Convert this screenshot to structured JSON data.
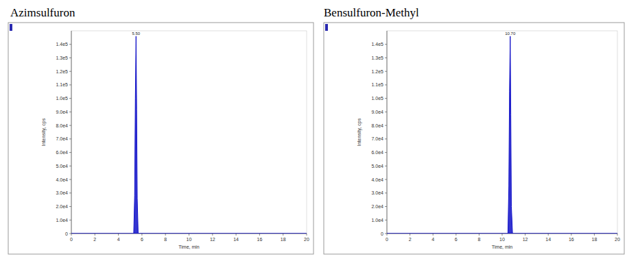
{
  "chart_data": [
    {
      "type": "area",
      "title": "Azimsulfuron",
      "x_label": "Time, min",
      "y_label": "Intensity, cps",
      "xlim": [
        0,
        20
      ],
      "xticks": [
        0,
        2,
        4,
        6,
        8,
        10,
        12,
        14,
        16,
        18,
        20
      ],
      "ylim": [
        0,
        150000
      ],
      "yticks": [
        0,
        {
          "value": 10000,
          "label": "1.0e4"
        },
        {
          "value": 20000,
          "label": "2.0e4"
        },
        {
          "value": 30000,
          "label": "3.0e4"
        },
        {
          "value": 40000,
          "label": "4.0e4"
        },
        {
          "value": 50000,
          "label": "5.0e4"
        },
        {
          "value": 60000,
          "label": "6.0e4"
        },
        {
          "value": 70000,
          "label": "7.0e4"
        },
        {
          "value": 80000,
          "label": "8.0e4"
        },
        {
          "value": 90000,
          "label": "9.0e4"
        },
        {
          "value": 100000,
          "label": "1.0e5"
        },
        {
          "value": 110000,
          "label": "1.1e5"
        },
        {
          "value": 120000,
          "label": "1.2e5"
        },
        {
          "value": 130000,
          "label": "1.3e5"
        },
        {
          "value": 140000,
          "label": "1.4e5"
        }
      ],
      "annotations": [
        {
          "x": 5.5,
          "y": 146000,
          "text": "5.50"
        }
      ],
      "series": [
        {
          "color": "#1010c8",
          "x": [
            0,
            5.3,
            5.38,
            5.44,
            5.5,
            5.55,
            5.6,
            5.68,
            20
          ],
          "values": [
            0,
            0,
            28000,
            100000,
            146000,
            92000,
            26000,
            0,
            0
          ]
        }
      ]
    },
    {
      "type": "area",
      "title": "Bensulfuron-Methyl",
      "x_label": "Time, min",
      "y_label": "Intensity, cps",
      "xlim": [
        0,
        20
      ],
      "xticks": [
        0,
        2,
        4,
        6,
        8,
        10,
        12,
        14,
        16,
        18,
        20
      ],
      "ylim": [
        0,
        150000
      ],
      "yticks": [
        0,
        {
          "value": 10000,
          "label": "1.0e4"
        },
        {
          "value": 20000,
          "label": "2.0e4"
        },
        {
          "value": 30000,
          "label": "3.0e4"
        },
        {
          "value": 40000,
          "label": "4.0e4"
        },
        {
          "value": 50000,
          "label": "5.0e4"
        },
        {
          "value": 60000,
          "label": "6.0e4"
        },
        {
          "value": 70000,
          "label": "7.0e4"
        },
        {
          "value": 80000,
          "label": "8.0e4"
        },
        {
          "value": 90000,
          "label": "9.0e4"
        },
        {
          "value": 100000,
          "label": "1.0e5"
        },
        {
          "value": 110000,
          "label": "1.1e5"
        },
        {
          "value": 120000,
          "label": "1.2e5"
        },
        {
          "value": 130000,
          "label": "1.3e5"
        },
        {
          "value": 140000,
          "label": "1.4e5"
        }
      ],
      "annotations": [
        {
          "x": 10.7,
          "y": 146000,
          "text": "10.70"
        }
      ],
      "series": [
        {
          "color": "#1010c8",
          "x": [
            0,
            10.5,
            10.58,
            10.64,
            10.7,
            10.75,
            10.8,
            10.9,
            20
          ],
          "values": [
            0,
            0,
            35000,
            105000,
            146000,
            88000,
            20000,
            0,
            0
          ]
        }
      ]
    }
  ]
}
